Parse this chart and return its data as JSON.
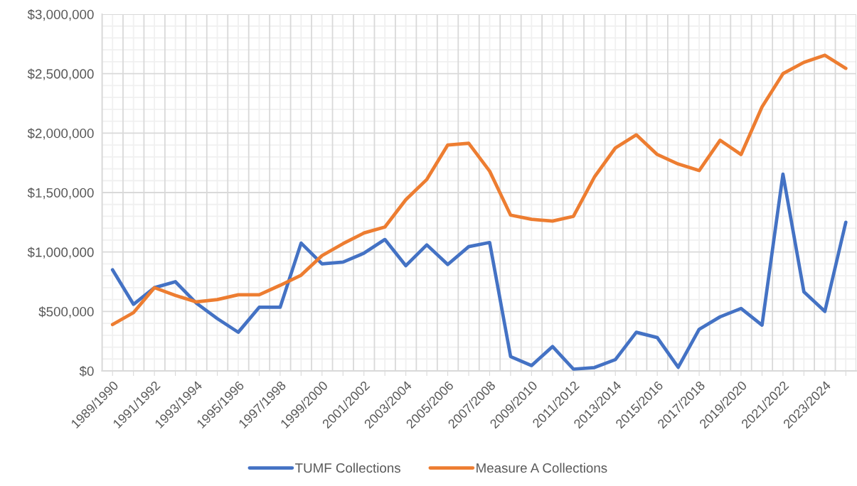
{
  "chart_data": {
    "type": "line",
    "categories": [
      "1989/1990",
      null,
      "1991/1992",
      null,
      "1993/1994",
      null,
      "1995/1996",
      null,
      "1997/1998",
      null,
      "1999/2000",
      null,
      "2001/2002",
      null,
      "2003/2004",
      null,
      "2005/2006",
      null,
      "2007/2008",
      null,
      "2009/2010",
      null,
      "2011/2012",
      null,
      "2013/2014",
      null,
      "2015/2016",
      null,
      "2017/2018",
      null,
      "2019/2020",
      null,
      "2021/2022",
      null,
      "2023/2024",
      null
    ],
    "series": [
      {
        "name": "TUMF Collections",
        "color": "#4472c4",
        "values": [
          850000,
          560000,
          700000,
          750000,
          570000,
          440000,
          325000,
          535000,
          535000,
          1075000,
          900000,
          915000,
          990000,
          1105000,
          885000,
          1060000,
          895000,
          1045000,
          1080000,
          120000,
          45000,
          205000,
          15000,
          28000,
          95000,
          325000,
          280000,
          30000,
          350000,
          455000,
          525000,
          385000,
          1655000,
          665000,
          500000,
          1250000
        ]
      },
      {
        "name": "Measure A Collections",
        "color": "#ed7d31",
        "values": [
          390000,
          490000,
          700000,
          635000,
          580000,
          600000,
          640000,
          640000,
          720000,
          805000,
          970000,
          1070000,
          1160000,
          1210000,
          1440000,
          1610000,
          1900000,
          1915000,
          1680000,
          1310000,
          1275000,
          1260000,
          1300000,
          1630000,
          1875000,
          1985000,
          1820000,
          1740000,
          1685000,
          1940000,
          1820000,
          2220000,
          2500000,
          2595000,
          2655000,
          2545000
        ]
      }
    ],
    "ylim": [
      0,
      3000000
    ],
    "yticks": [
      {
        "value": 0,
        "label": "$0"
      },
      {
        "value": 500000,
        "label": "$500,000"
      },
      {
        "value": 1000000,
        "label": "$1,000,000"
      },
      {
        "value": 1500000,
        "label": "$1,500,000"
      },
      {
        "value": 2000000,
        "label": "$2,000,000"
      },
      {
        "value": 2500000,
        "label": "$2,500,000"
      },
      {
        "value": 3000000,
        "label": "$3,000,000"
      }
    ],
    "grid": true,
    "legend": "bottom",
    "marker": "none",
    "line_style": "solid"
  }
}
